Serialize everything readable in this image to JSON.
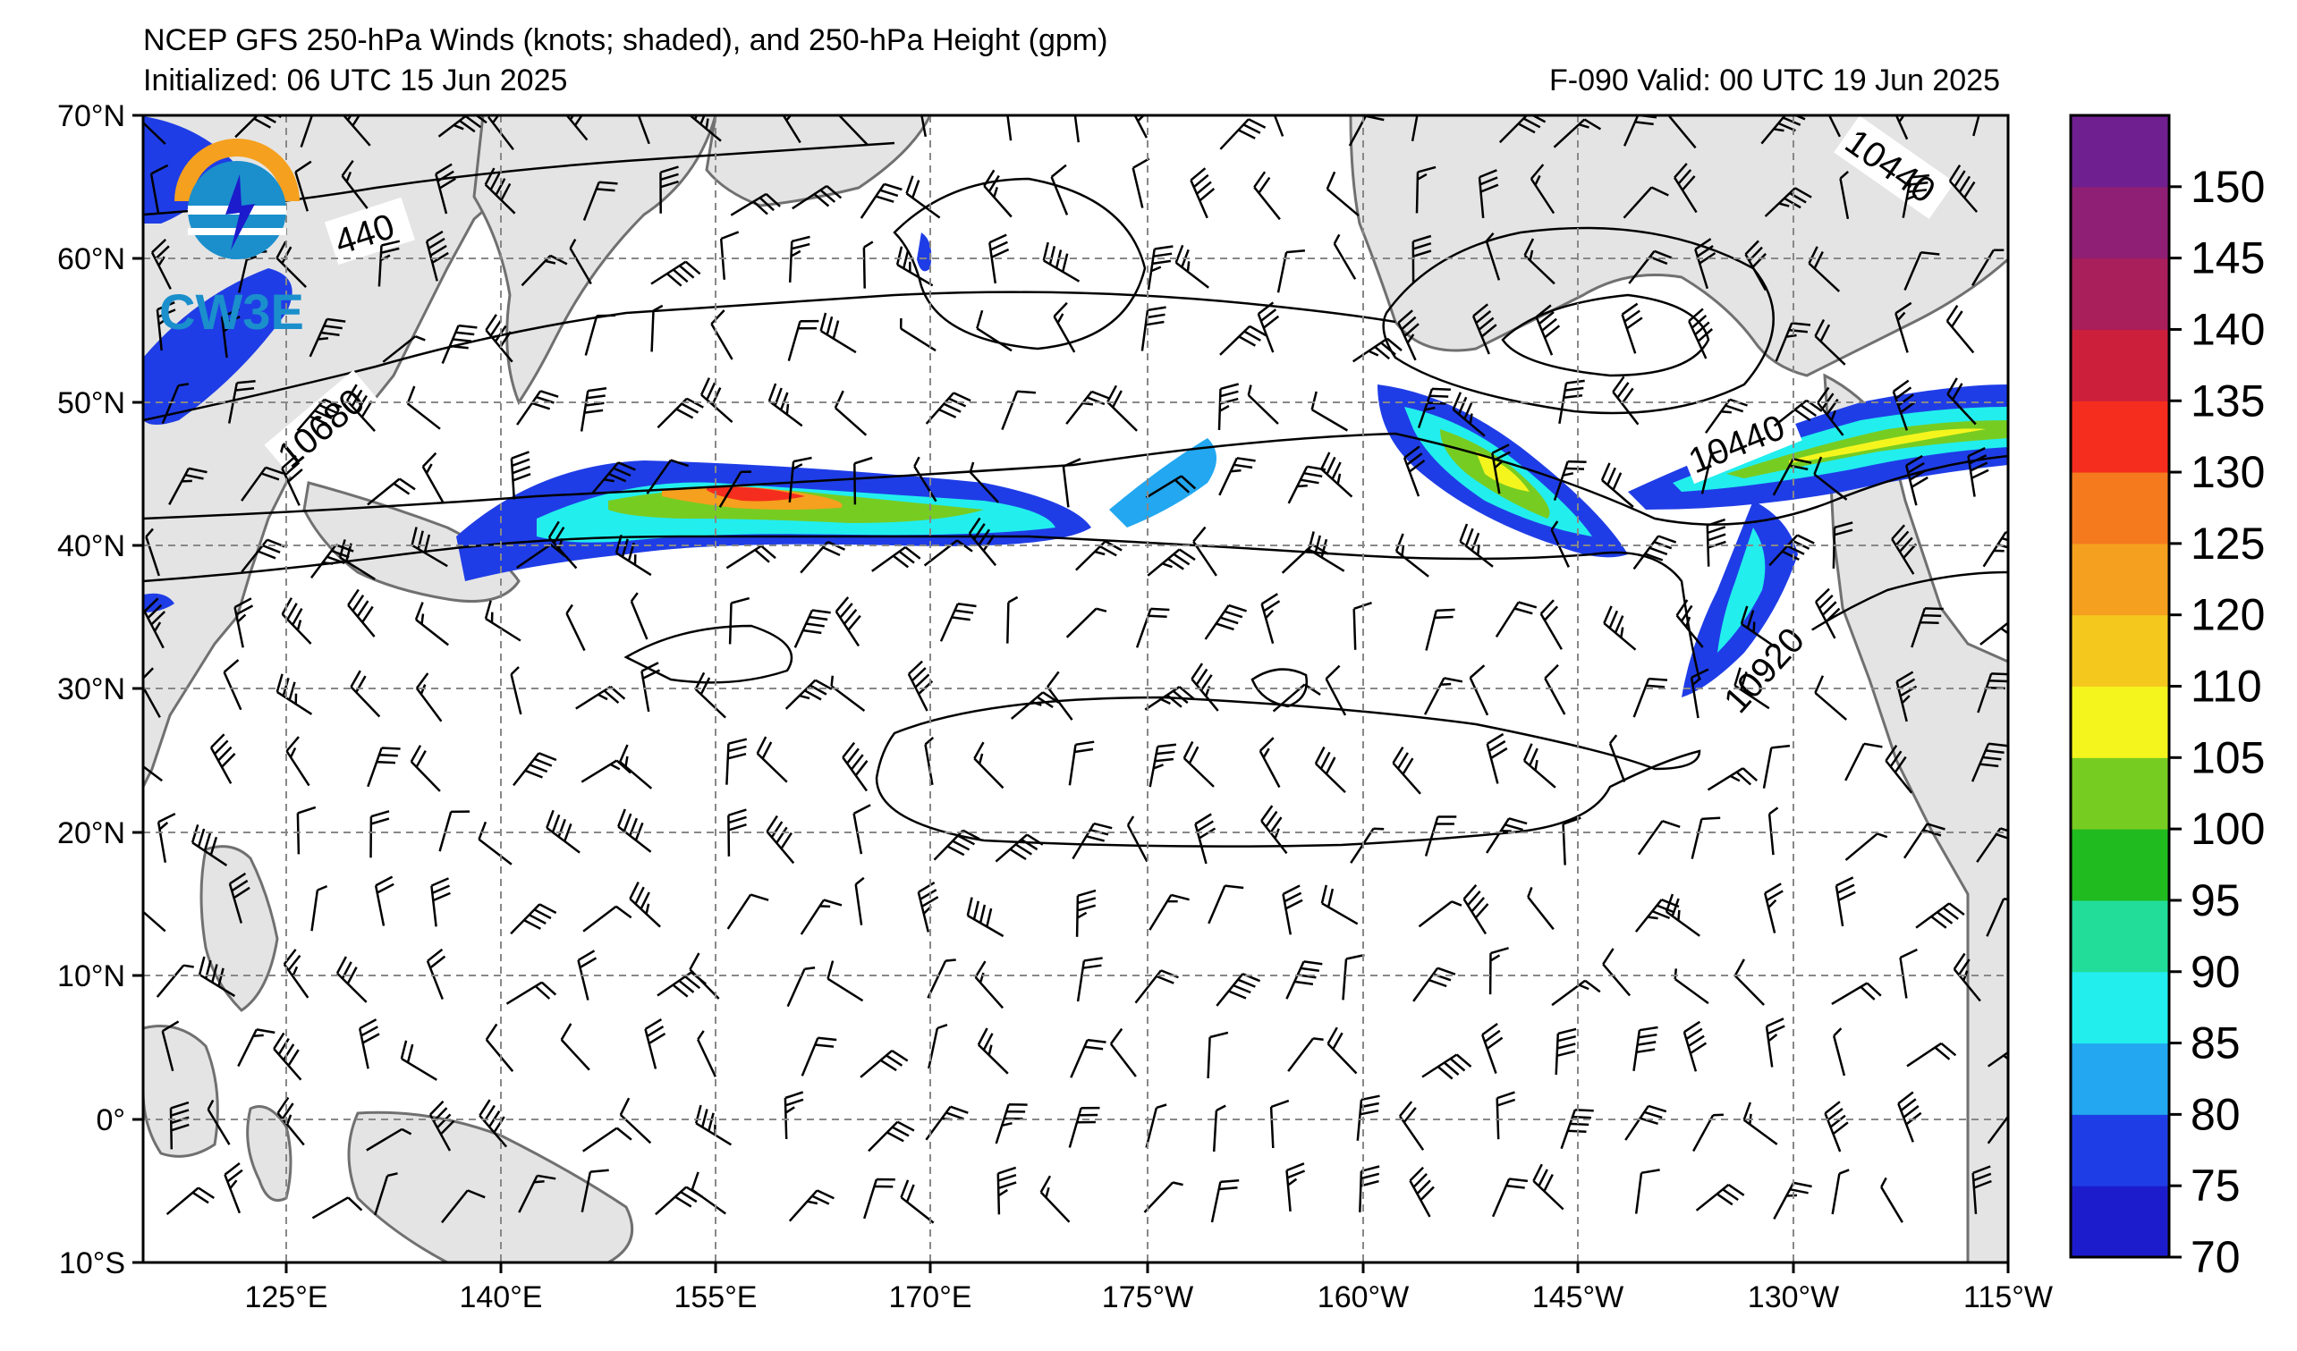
{
  "header": {
    "title": "NCEP GFS 250-hPa Winds (knots; shaded), and 250-hPa Height (gpm)",
    "init": "Initialized: 06 UTC 15 Jun 2025",
    "valid": "F-090  Valid: 00 UTC 19 Jun 2025"
  },
  "logo": {
    "text": "CW3E"
  },
  "axes": {
    "lat_labels": [
      "70°N",
      "60°N",
      "50°N",
      "40°N",
      "30°N",
      "20°N",
      "10°N",
      "0°",
      "10°S"
    ],
    "lon_labels": [
      "125°E",
      "140°E",
      "155°E",
      "170°E",
      "175°W",
      "160°W",
      "145°W",
      "130°W",
      "115°W"
    ]
  },
  "contour_labels": [
    "440",
    "10680",
    "10440",
    "10440",
    "10920"
  ],
  "colorbar": {
    "levels": [
      70,
      75,
      80,
      85,
      90,
      95,
      100,
      105,
      110,
      120,
      125,
      130,
      135,
      140,
      145,
      150
    ],
    "colors": [
      "#1c1ccc",
      "#1f3de6",
      "#22a7f0",
      "#22eeee",
      "#22dd99",
      "#1fbb1f",
      "#77cc22",
      "#f5f51e",
      "#f5c81e",
      "#f5a01e",
      "#f57a1e",
      "#f52d1e",
      "#cc1f3c",
      "#a81f5c",
      "#8f1f74",
      "#6f1f8f"
    ]
  },
  "colors": {
    "land": "#e4e4e4",
    "coast": "#707070",
    "grid": "#888888"
  }
}
